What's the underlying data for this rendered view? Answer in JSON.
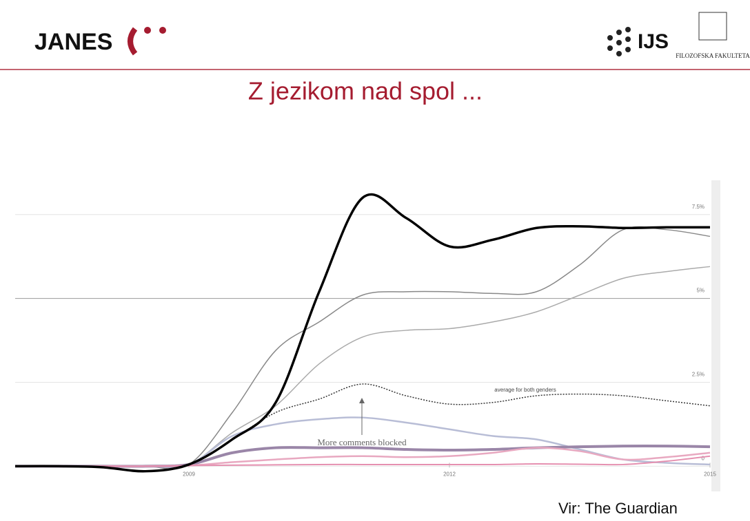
{
  "header": {
    "logo_left": "JANES",
    "logo_right": "IJS",
    "logo_faculty": "FILOZOFSKA FAKULTETA"
  },
  "slide": {
    "title": "Z jezikom nad spol ...",
    "source": "Vir: The Guardian"
  },
  "chart_data": {
    "type": "line",
    "x": [
      2007,
      2007.5,
      2008,
      2008.5,
      2009,
      2009.5,
      2010,
      2010.5,
      2011,
      2011.5,
      2012,
      2012.5,
      2013,
      2013.5,
      2014,
      2014.5,
      2015
    ],
    "xlim": [
      2007,
      2015
    ],
    "xticks": [
      2009,
      2012,
      2015
    ],
    "ylim": [
      -0.3,
      8.5
    ],
    "yticks": [
      0,
      {
        "value": 2.5,
        "label": "2.5%"
      },
      {
        "value": 5,
        "label": "5%"
      },
      {
        "value": 7.5,
        "label": "7.5%"
      }
    ],
    "grid": true,
    "annotations": [
      "average for both genders",
      "More comments blocked"
    ],
    "series": [
      {
        "color": "#aaaaaa",
        "values": [
          0,
          0,
          0,
          0,
          0.05,
          1.0,
          1.8,
          3.05,
          3.85,
          4.05,
          4.1,
          4.3,
          4.6,
          5.1,
          5.6,
          5.8,
          5.95
        ]
      },
      {
        "color": "#888888",
        "values": [
          0,
          0,
          0,
          0,
          0.05,
          1.6,
          3.45,
          4.3,
          5.1,
          5.2,
          5.2,
          5.15,
          5.2,
          6.0,
          7.05,
          7.05,
          6.85
        ]
      },
      {
        "color": "#333333",
        "style": "dotted",
        "values": [
          0,
          0,
          0,
          0,
          0.05,
          0.8,
          1.6,
          2.0,
          2.45,
          2.1,
          1.85,
          1.9,
          2.1,
          2.15,
          2.1,
          1.95,
          1.8
        ]
      },
      {
        "color": "#b8bdd6",
        "values": [
          0,
          0,
          0,
          0,
          0.05,
          0.9,
          1.25,
          1.4,
          1.45,
          1.3,
          1.1,
          0.9,
          0.8,
          0.5,
          0.2,
          0.1,
          0.05
        ]
      },
      {
        "color": "#9a86a8",
        "values": [
          0,
          0,
          0,
          0,
          0.05,
          0.4,
          0.55,
          0.55,
          0.55,
          0.5,
          0.48,
          0.5,
          0.55,
          0.58,
          0.6,
          0.6,
          0.58
        ]
      },
      {
        "color": "#e8a8c0",
        "values": [
          0,
          0,
          0,
          0,
          0.02,
          0.12,
          0.2,
          0.27,
          0.3,
          0.27,
          0.3,
          0.4,
          0.55,
          0.45,
          0.2,
          0.27,
          0.4
        ]
      },
      {
        "color": "#e590b0",
        "values": [
          0,
          0,
          0,
          0,
          0.02,
          0.03,
          0.04,
          0.05,
          0.05,
          0.05,
          0.05,
          0.05,
          0.07,
          0.06,
          0.05,
          0.15,
          0.3
        ]
      },
      {
        "color": "#000000",
        "values": [
          0,
          0,
          -0.03,
          -0.15,
          0.05,
          0.8,
          1.9,
          5.2,
          8.0,
          7.4,
          6.55,
          6.75,
          7.1,
          7.15,
          7.1,
          7.12,
          7.12
        ]
      }
    ]
  }
}
